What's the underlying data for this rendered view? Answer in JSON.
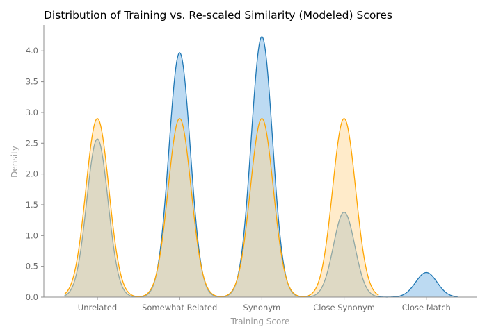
{
  "chart_data": {
    "type": "area",
    "title": "Distribution of Training vs. Re-scaled Similarity (Modeled) Scores",
    "xlabel": "Training Score",
    "ylabel": "Density",
    "categories": [
      "Unrelated",
      "Somewhat Related",
      "Synonym",
      "Close Synonym",
      "Close Match"
    ],
    "ylim": [
      0,
      4.42
    ],
    "yticks": [
      "0.0",
      "0.5",
      "1.0",
      "1.5",
      "2.0",
      "2.5",
      "3.0",
      "3.5",
      "4.0"
    ],
    "grid": false,
    "legend": "none",
    "series": [
      {
        "peaks": [
          2.57,
          3.97,
          4.23,
          1.38,
          0.4
        ],
        "color_line": "#1f77b4",
        "color_fill": "#a6cdee"
      },
      {
        "peaks": [
          2.9,
          2.9,
          2.9,
          2.9,
          0
        ],
        "color_line": "#ffa500",
        "color_fill": "#ffd796"
      }
    ]
  }
}
